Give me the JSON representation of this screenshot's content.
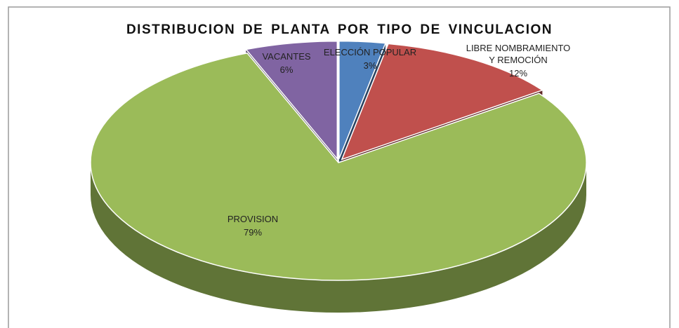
{
  "chart_data": {
    "type": "pie",
    "title": "DISTRIBUCION DE PLANTA POR TIPO DE VINCULACION",
    "categories": [
      "ELECCIÓN POPULAR",
      "LIBRE NOMBRAMIENTO Y REMOCIÓN",
      "PROVISION",
      "VACANTES"
    ],
    "values": [
      3,
      12,
      79,
      6
    ],
    "value_labels": [
      "3%",
      "12%",
      "79%",
      "6%"
    ],
    "colors": [
      "#4f81bd",
      "#c0504d",
      "#9bbb59",
      "#8064a2"
    ]
  }
}
